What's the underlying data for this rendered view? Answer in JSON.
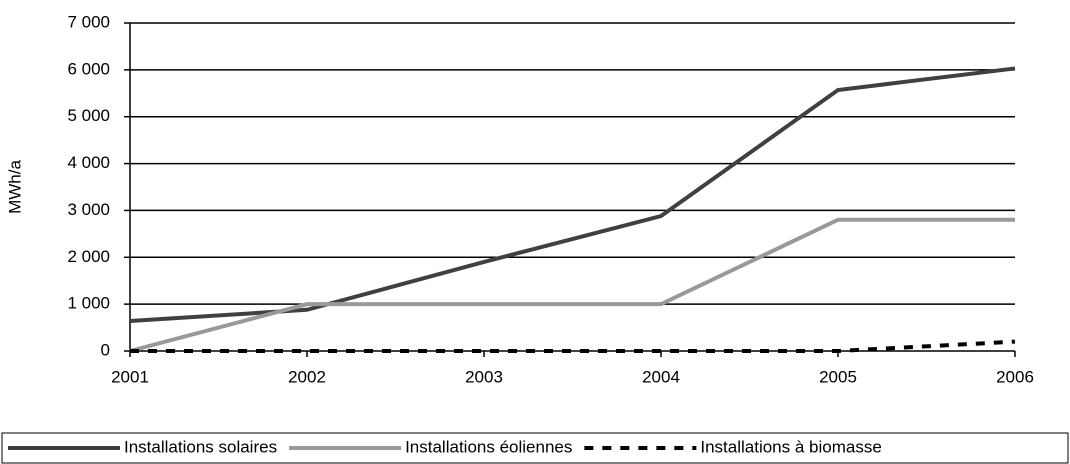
{
  "chart_data": {
    "type": "line",
    "x": [
      2001,
      2002,
      2003,
      2004,
      2005,
      2006
    ],
    "xlim": [
      2001,
      2006
    ],
    "xticks": [
      2001,
      2002,
      2003,
      2004,
      2005,
      2006
    ],
    "ylim": [
      0,
      7000
    ],
    "yticks": [
      0,
      {
        "value": 1000,
        "label": "1 000"
      },
      {
        "value": 2000,
        "label": "2 000"
      },
      {
        "value": 3000,
        "label": "3 000"
      },
      {
        "value": 4000,
        "label": "4 000"
      },
      {
        "value": 5000,
        "label": "5 000"
      },
      {
        "value": 6000,
        "label": "6 000"
      },
      {
        "value": 7000,
        "label": "7 000"
      }
    ],
    "ylabel": "MWh/a",
    "grid": true,
    "legend": "bottom",
    "series": [
      {
        "name": "Installations solaires",
        "color": "#404040",
        "style": "solid",
        "values": [
          640,
          880,
          1900,
          2880,
          5570,
          6030
        ]
      },
      {
        "name": "Installations éoliennes",
        "color": "#999999",
        "style": "solid",
        "values": [
          0,
          1000,
          1000,
          1000,
          2800,
          2800
        ]
      },
      {
        "name": "Installations à biomasse",
        "color": "#000000",
        "style": "dashed",
        "values": [
          0,
          0,
          0,
          0,
          0,
          200
        ]
      }
    ]
  }
}
